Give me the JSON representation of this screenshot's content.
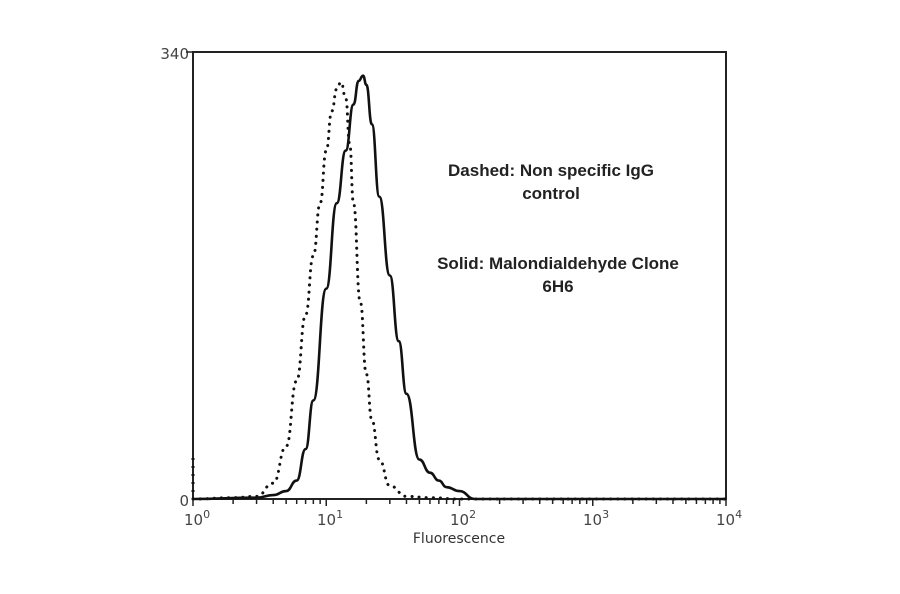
{
  "chart_data": {
    "type": "line",
    "title": "",
    "xlabel": "Fluorescence",
    "ylabel": "",
    "xscale": "log",
    "xlim": [
      1,
      10000
    ],
    "ylim": [
      0,
      340
    ],
    "x_tick_labels": [
      "10^0",
      "10^1",
      "10^2",
      "10^3",
      "10^4"
    ],
    "y_tick_labels": [
      "0",
      "340"
    ],
    "grid": false,
    "legend_position": "annotation-inside-right",
    "annotations": [
      {
        "line1": "Dashed: Non specific IgG",
        "line2": "control"
      },
      {
        "line1": "Solid: Malondialdehyde Clone",
        "line2": "6H6"
      }
    ],
    "series": [
      {
        "name": "Non specific IgG control",
        "style": "dotted",
        "x": [
          1,
          2,
          3,
          4,
          5,
          6,
          7,
          8,
          9,
          10,
          11,
          12,
          12.9,
          14,
          15,
          16,
          18,
          20,
          22,
          25,
          30,
          40,
          60,
          100,
          10000
        ],
        "y": [
          0,
          1,
          2,
          12,
          40,
          90,
          140,
          185,
          225,
          265,
          295,
          312,
          317,
          305,
          270,
          225,
          150,
          95,
          60,
          30,
          10,
          2,
          1,
          0,
          0
        ]
      },
      {
        "name": "Malondialdehyde Clone 6H6",
        "style": "solid",
        "x": [
          1,
          3,
          4,
          5,
          6,
          7,
          8,
          10,
          12,
          14,
          16,
          17.5,
          18.9,
          20,
          22,
          25,
          30,
          35,
          40,
          50,
          60,
          70,
          80,
          100,
          130,
          10000
        ],
        "y": [
          0,
          1,
          3,
          6,
          14,
          38,
          75,
          160,
          225,
          265,
          300,
          318,
          322,
          315,
          285,
          230,
          170,
          120,
          80,
          30,
          20,
          14,
          9,
          6,
          0,
          0
        ]
      }
    ]
  },
  "axes": {
    "y_max_label": "340",
    "y_min_label": "0",
    "x_base": "10",
    "x_exponents": [
      "0",
      "1",
      "2",
      "3",
      "4"
    ],
    "x_title": "Fluorescence"
  },
  "annotations": {
    "dashed_line1": "Dashed: Non specific IgG",
    "dashed_line2": "control",
    "solid_line1": "Solid: Malondialdehyde Clone",
    "solid_line2": "6H6"
  }
}
